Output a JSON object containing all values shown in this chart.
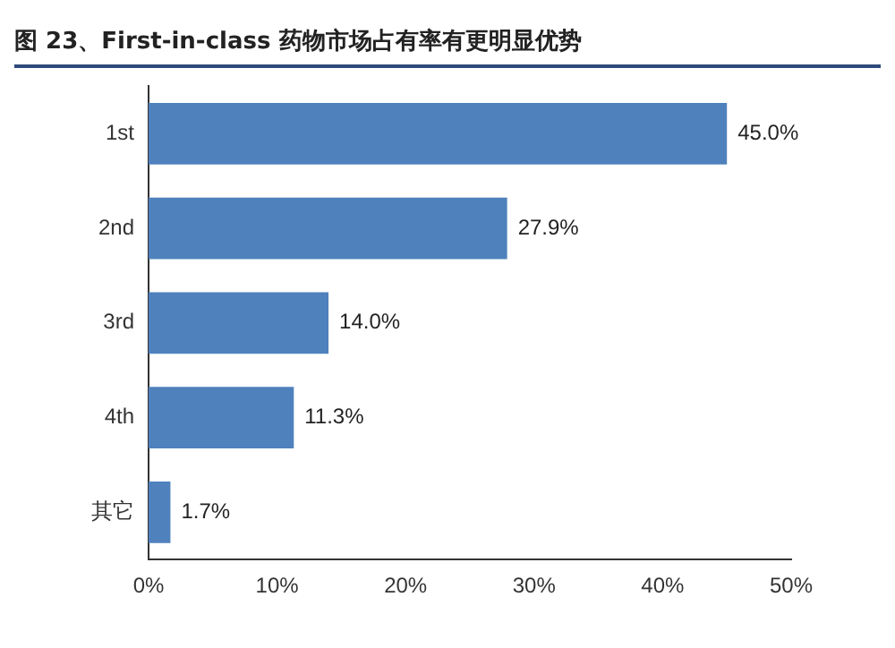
{
  "chart_data": {
    "type": "bar",
    "orientation": "horizontal",
    "title": "图 23、First-in-class 药物市场占有率有更明显优势",
    "categories": [
      "1st",
      "2nd",
      "3rd",
      "4th",
      "其它"
    ],
    "values": [
      45.0,
      27.9,
      14.0,
      11.3,
      1.7
    ],
    "value_labels": [
      "45.0%",
      "27.9%",
      "14.0%",
      "11.3%",
      "1.7%"
    ],
    "color": "#4f81bd",
    "xlim": [
      0,
      50
    ],
    "xticks": [
      {
        "value": 0,
        "label": "0%"
      },
      {
        "value": 10,
        "label": "10%"
      },
      {
        "value": 20,
        "label": "20%"
      },
      {
        "value": 30,
        "label": "30%"
      },
      {
        "value": 40,
        "label": "40%"
      },
      {
        "value": 50,
        "label": "50%"
      }
    ],
    "grid": false,
    "legend": false
  }
}
